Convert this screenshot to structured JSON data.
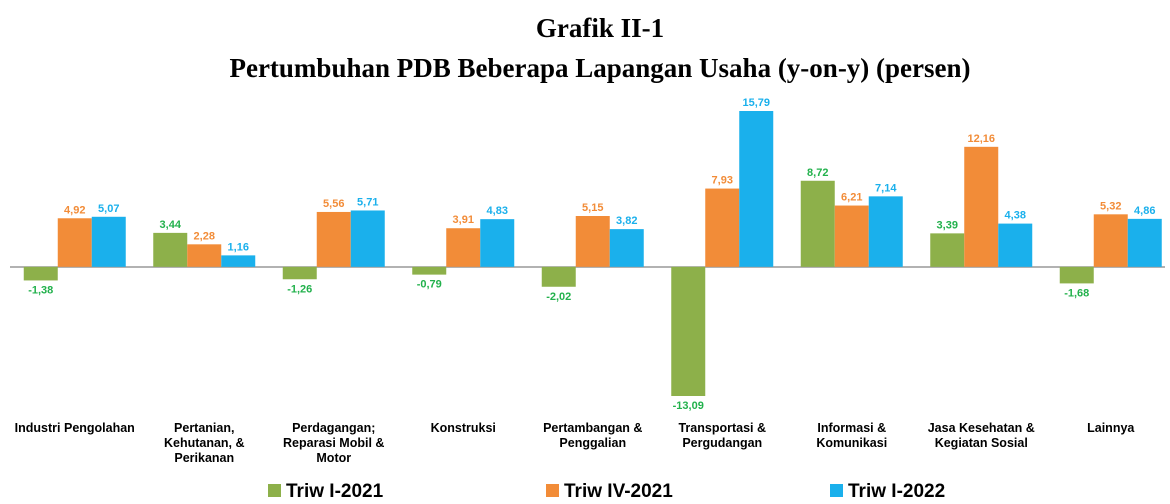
{
  "chart_data": {
    "type": "bar",
    "title": "Grafik II-1",
    "subtitle": "Pertumbuhan PDB Beberapa Lapangan Usaha (y-on-y) (persen)",
    "categories": [
      "Industri Pengolahan",
      "Pertanian, Kehutanan, & Perikanan",
      "Perdagangan; Reparasi Mobil & Motor",
      "Konstruksi",
      "Pertambangan & Penggalian",
      "Transportasi & Pergudangan",
      "Informasi & Komunikasi",
      "Jasa Kesehatan & Kegiatan Sosial",
      "Lainnya"
    ],
    "series": [
      {
        "name": "Triw I-2021",
        "color": "#8db04a",
        "label_color": "#22b14c",
        "values": [
          -1.38,
          3.44,
          -1.26,
          -0.79,
          -2.02,
          -13.09,
          8.72,
          3.39,
          -1.68
        ],
        "value_labels": [
          "-1,38",
          "3,44",
          "-1,26",
          "-0,79",
          "-2,02",
          "-13,09",
          "8,72",
          "3,39",
          "-1,68"
        ]
      },
      {
        "name": "Triw IV-2021",
        "color": "#f28c38",
        "label_color": "#f28c38",
        "values": [
          4.92,
          2.28,
          5.56,
          3.91,
          5.15,
          7.93,
          6.21,
          12.16,
          5.32
        ],
        "value_labels": [
          "4,92",
          "2,28",
          "5,56",
          "3,91",
          "5,15",
          "7,93",
          "6,21",
          "12,16",
          "5,32"
        ]
      },
      {
        "name": "Triw I-2022",
        "color": "#1ab0ec",
        "label_color": "#1ab0ec",
        "values": [
          5.07,
          1.16,
          5.71,
          4.83,
          3.82,
          15.79,
          7.14,
          4.38,
          4.86
        ],
        "value_labels": [
          "5,07",
          "1,16",
          "5,71",
          "4,83",
          "3,82",
          "15,79",
          "7,14",
          "4,38",
          "4,86"
        ]
      }
    ]
  }
}
